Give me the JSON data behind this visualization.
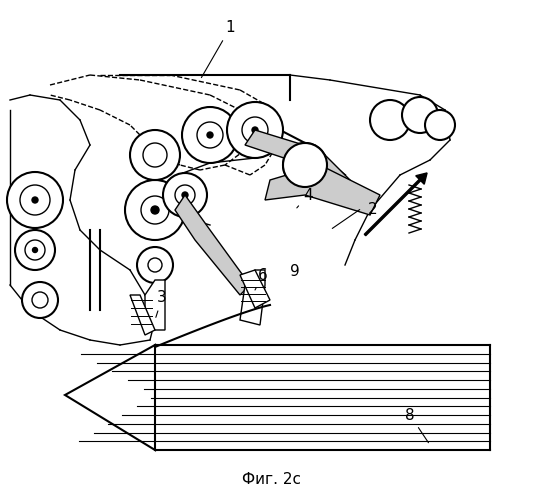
{
  "title": "Фиг. 2с",
  "bg_color": "#ffffff",
  "line_color": "#000000",
  "fig_width": 5.42,
  "fig_height": 5.0,
  "dpi": 100
}
